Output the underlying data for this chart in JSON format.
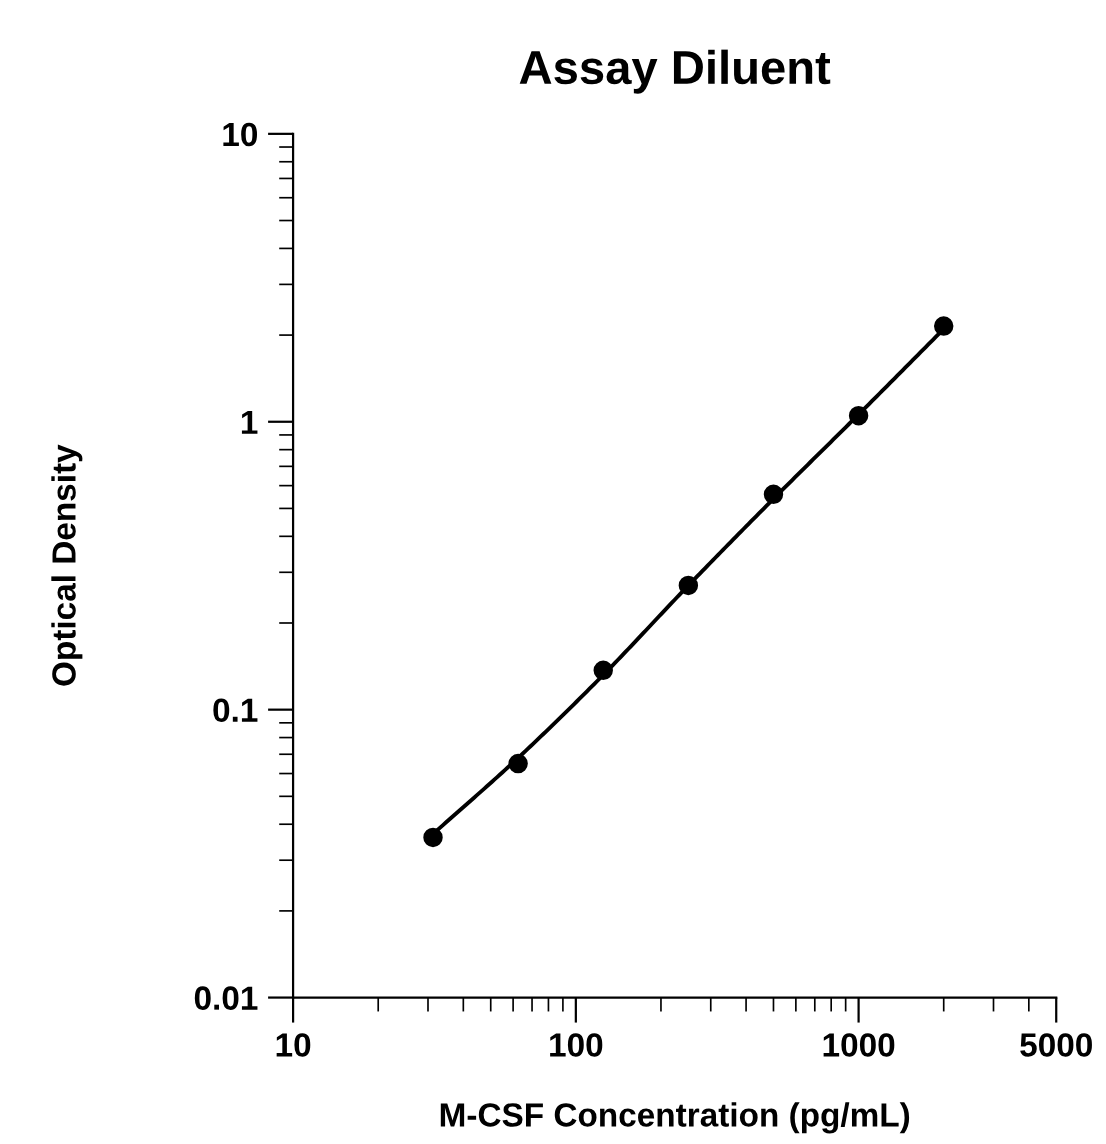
{
  "chart_data": {
    "type": "scatter",
    "title": "Assay Diluent",
    "xlabel": "M-CSF Concentration (pg/mL)",
    "ylabel": "Optical Density",
    "log": "xy",
    "grid": false,
    "marker": "circle",
    "xlim": [
      10,
      5000
    ],
    "xticks": [
      10,
      100,
      1000,
      5000
    ],
    "ylim": [
      0.01,
      10
    ],
    "yticks": [
      0.01,
      0.1,
      1,
      10
    ],
    "series": [
      {
        "color": "#000000",
        "x": [
          31.25,
          62.5,
          125,
          250,
          500,
          1000,
          2000
        ],
        "values": [
          0.036,
          0.065,
          0.137,
          0.27,
          0.56,
          1.05,
          2.15
        ]
      },
      {
        "type": "line",
        "color": "#000000",
        "marker": "none",
        "line_style": "solid",
        "x": [
          31.25,
          62.5,
          125,
          250,
          500,
          1000,
          2000
        ],
        "values": [
          0.037,
          0.068,
          0.132,
          0.27,
          0.54,
          1.06,
          2.1
        ]
      }
    ]
  }
}
